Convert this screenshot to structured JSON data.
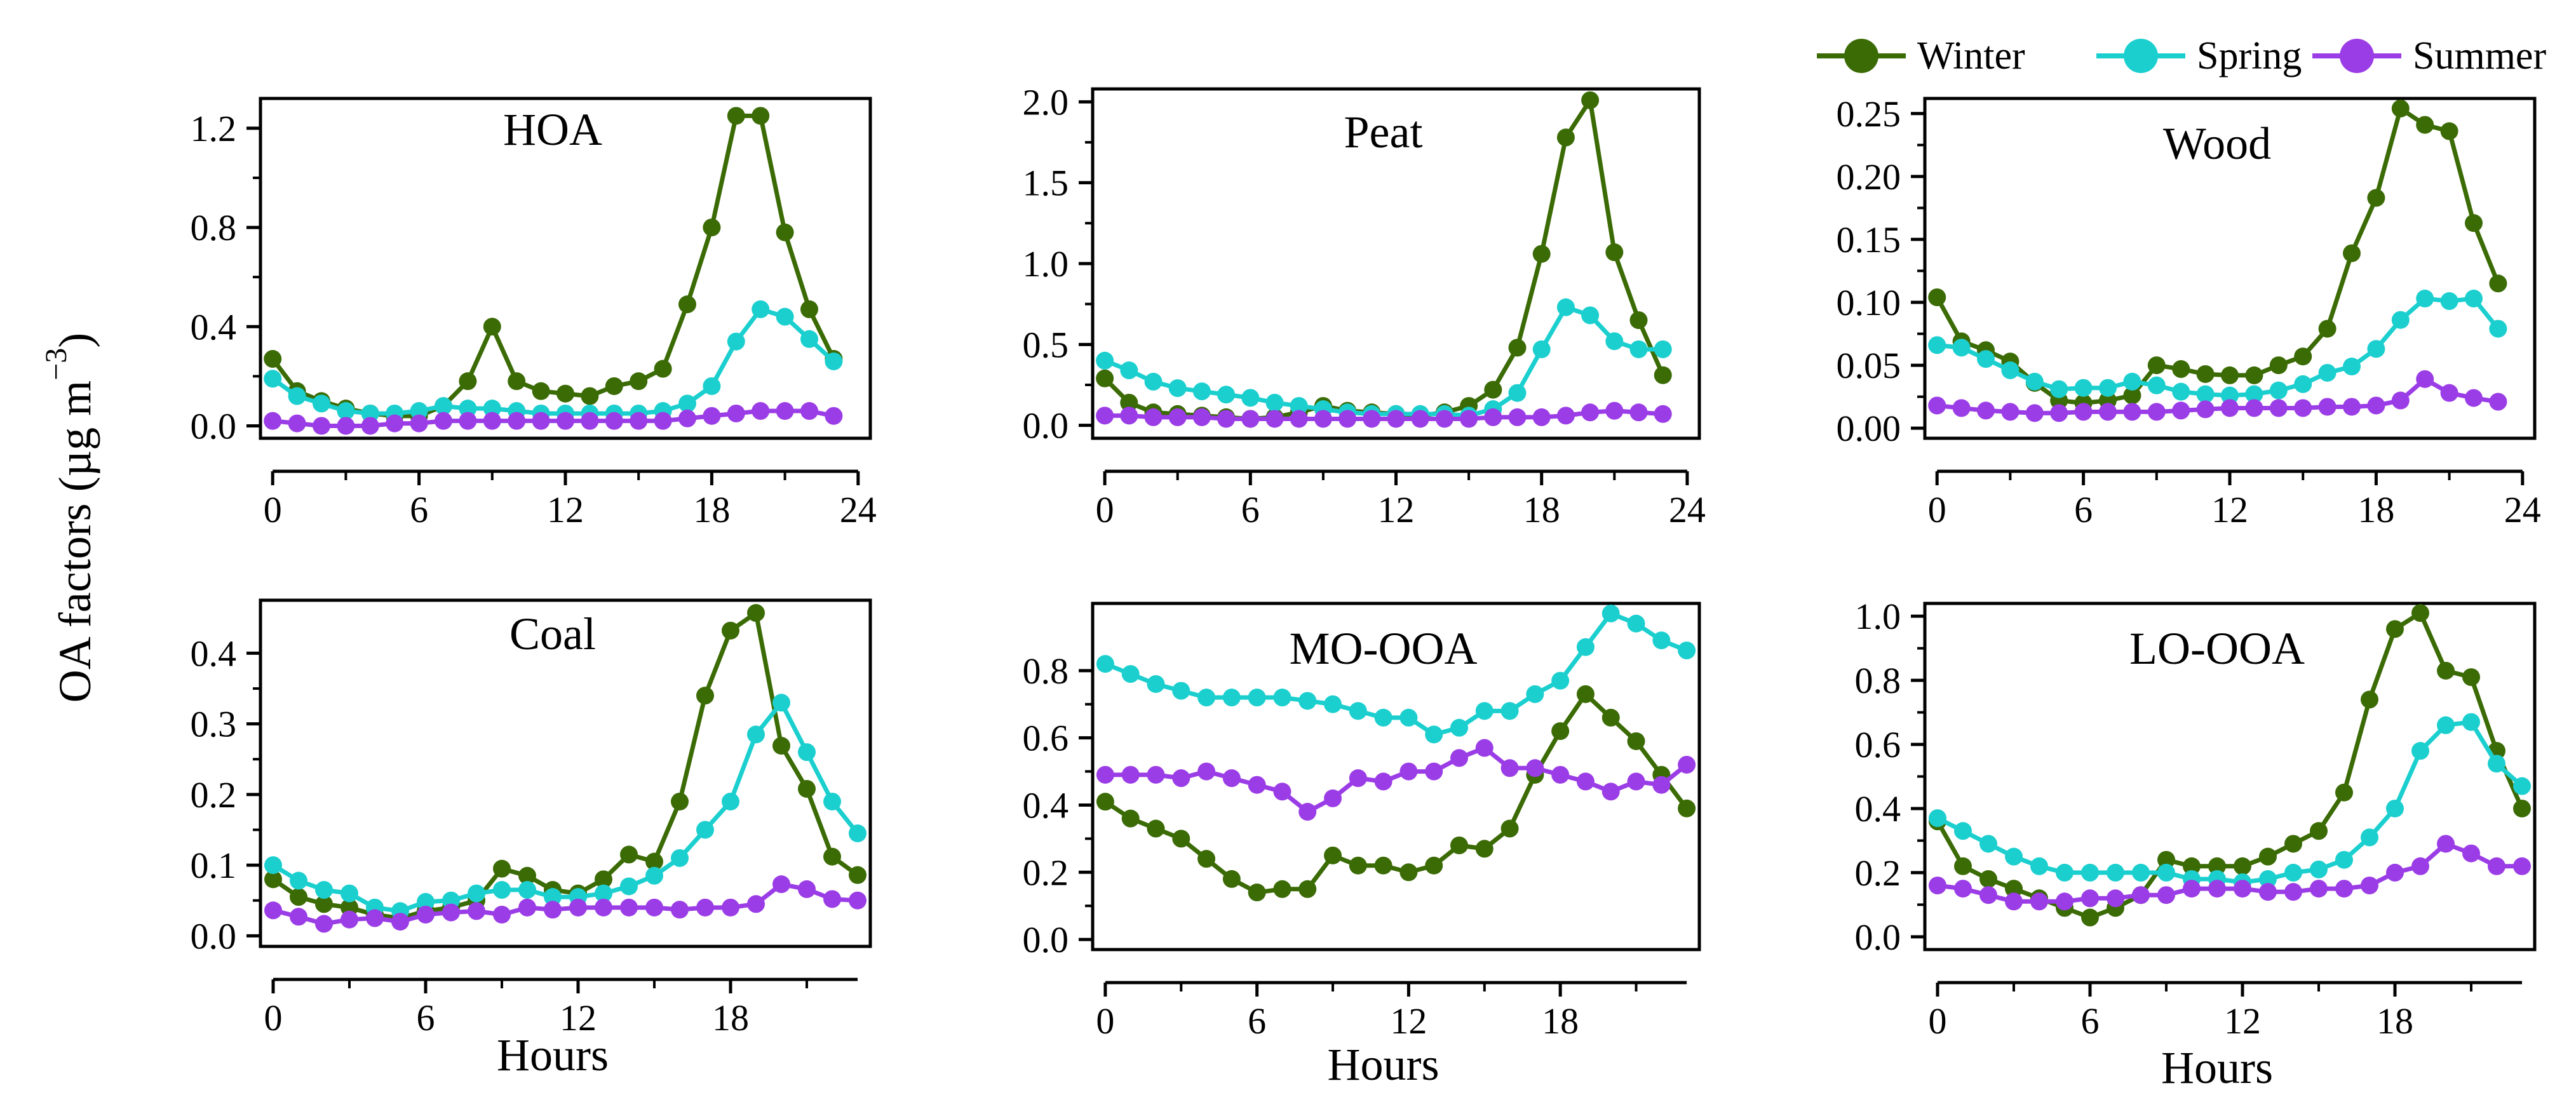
{
  "colors": {
    "Winter": "#3b6b05",
    "Spring": "#1ccfcf",
    "Summer": "#9b3de6"
  },
  "legend": [
    "Winter",
    "Spring",
    "Summer"
  ],
  "ylabel_main": "OA factors (µg m",
  "ylabel_exp": "−3",
  "ylabel_close": ")",
  "chart_data": [
    {
      "type": "line",
      "title": "HOA",
      "xlabel": "",
      "xticks": [
        "0",
        "6",
        "12",
        "18",
        "24"
      ],
      "xlim": [
        -0.5,
        24.5
      ],
      "yticks": [
        "0.0",
        "0.4",
        "0.8",
        "1.2"
      ],
      "ytick_values": [
        0,
        0.4,
        0.8,
        1.2
      ],
      "ylim": [
        -0.05,
        1.32
      ],
      "x": [
        0,
        1,
        2,
        3,
        4,
        5,
        6,
        7,
        8,
        9,
        10,
        11,
        12,
        13,
        14,
        15,
        16,
        17,
        18,
        19,
        20,
        21,
        22,
        23
      ],
      "series": [
        {
          "name": "Winter",
          "values": [
            0.27,
            0.14,
            0.1,
            0.07,
            0.05,
            0.04,
            0.04,
            0.08,
            0.18,
            0.4,
            0.18,
            0.14,
            0.13,
            0.12,
            0.16,
            0.18,
            0.23,
            0.49,
            0.8,
            1.25,
            1.25,
            0.78,
            0.47,
            0.27
          ]
        },
        {
          "name": "Spring",
          "values": [
            0.19,
            0.12,
            0.09,
            0.06,
            0.05,
            0.05,
            0.06,
            0.08,
            0.07,
            0.07,
            0.06,
            0.05,
            0.05,
            0.05,
            0.05,
            0.05,
            0.06,
            0.09,
            0.16,
            0.34,
            0.47,
            0.44,
            0.35,
            0.26
          ]
        },
        {
          "name": "Summer",
          "values": [
            0.02,
            0.01,
            0.0,
            0.0,
            0.0,
            0.01,
            0.01,
            0.02,
            0.02,
            0.02,
            0.02,
            0.02,
            0.02,
            0.02,
            0.02,
            0.02,
            0.02,
            0.03,
            0.04,
            0.05,
            0.06,
            0.06,
            0.06,
            0.04
          ]
        }
      ]
    },
    {
      "type": "line",
      "title": "Peat",
      "xlabel": "",
      "xticks": [
        "0",
        "6",
        "12",
        "18",
        "24"
      ],
      "xlim": [
        -0.5,
        24.5
      ],
      "yticks": [
        "0.0",
        "0.5",
        "1.0",
        "1.5",
        "2.0"
      ],
      "ytick_values": [
        0,
        0.5,
        1.0,
        1.5,
        2.0
      ],
      "ylim": [
        -0.08,
        2.08
      ],
      "x": [
        0,
        1,
        2,
        3,
        4,
        5,
        6,
        7,
        8,
        9,
        10,
        11,
        12,
        13,
        14,
        15,
        16,
        17,
        18,
        19,
        20,
        21,
        22,
        23
      ],
      "series": [
        {
          "name": "Winter",
          "values": [
            0.29,
            0.14,
            0.08,
            0.07,
            0.06,
            0.05,
            0.04,
            0.05,
            0.08,
            0.12,
            0.09,
            0.08,
            0.07,
            0.06,
            0.08,
            0.12,
            0.22,
            0.48,
            1.06,
            1.78,
            2.01,
            1.07,
            0.65,
            0.31
          ]
        },
        {
          "name": "Spring",
          "values": [
            0.4,
            0.34,
            0.27,
            0.23,
            0.21,
            0.19,
            0.17,
            0.14,
            0.12,
            0.1,
            0.08,
            0.07,
            0.07,
            0.07,
            0.07,
            0.06,
            0.1,
            0.2,
            0.47,
            0.73,
            0.68,
            0.52,
            0.47,
            0.47
          ]
        },
        {
          "name": "Summer",
          "values": [
            0.06,
            0.06,
            0.05,
            0.05,
            0.05,
            0.04,
            0.04,
            0.04,
            0.04,
            0.04,
            0.04,
            0.04,
            0.04,
            0.04,
            0.04,
            0.04,
            0.05,
            0.05,
            0.05,
            0.06,
            0.08,
            0.09,
            0.08,
            0.07
          ]
        }
      ]
    },
    {
      "type": "line",
      "title": "Wood",
      "xlabel": "",
      "xticks": [
        "0",
        "6",
        "12",
        "18",
        "24"
      ],
      "xlim": [
        -0.5,
        24.5
      ],
      "yticks": [
        "0.00",
        "0.05",
        "0.10",
        "0.15",
        "0.20",
        "0.25"
      ],
      "ytick_values": [
        0,
        0.05,
        0.1,
        0.15,
        0.2,
        0.25
      ],
      "ylim": [
        -0.008,
        0.262
      ],
      "x": [
        0,
        1,
        2,
        3,
        4,
        5,
        6,
        7,
        8,
        9,
        10,
        11,
        12,
        13,
        14,
        15,
        16,
        17,
        18,
        19,
        20,
        21,
        22,
        23
      ],
      "series": [
        {
          "name": "Winter",
          "values": [
            0.104,
            0.069,
            0.062,
            0.053,
            0.036,
            0.022,
            0.02,
            0.022,
            0.026,
            0.05,
            0.047,
            0.043,
            0.042,
            0.042,
            0.05,
            0.057,
            0.079,
            0.139,
            0.183,
            0.254,
            0.241,
            0.236,
            0.163,
            0.115
          ]
        },
        {
          "name": "Spring",
          "values": [
            0.066,
            0.064,
            0.055,
            0.046,
            0.037,
            0.031,
            0.032,
            0.032,
            0.037,
            0.034,
            0.029,
            0.027,
            0.026,
            0.027,
            0.03,
            0.035,
            0.044,
            0.049,
            0.063,
            0.086,
            0.103,
            0.101,
            0.103,
            0.079
          ]
        },
        {
          "name": "Summer",
          "values": [
            0.018,
            0.016,
            0.014,
            0.013,
            0.012,
            0.012,
            0.013,
            0.013,
            0.013,
            0.013,
            0.014,
            0.015,
            0.016,
            0.016,
            0.016,
            0.016,
            0.017,
            0.017,
            0.018,
            0.022,
            0.039,
            0.028,
            0.024,
            0.021
          ]
        }
      ]
    },
    {
      "type": "line",
      "title": "Coal",
      "xlabel": "Hours",
      "xticks": [
        "0",
        "6",
        "12",
        "18"
      ],
      "xlim": [
        -0.5,
        23.5
      ],
      "yticks": [
        "0.0",
        "0.1",
        "0.2",
        "0.3",
        "0.4"
      ],
      "ytick_values": [
        0,
        0.1,
        0.2,
        0.3,
        0.4
      ],
      "ylim": [
        -0.015,
        0.475
      ],
      "x": [
        0,
        1,
        2,
        3,
        4,
        5,
        6,
        7,
        8,
        9,
        10,
        11,
        12,
        13,
        14,
        15,
        16,
        17,
        18,
        19,
        20,
        21,
        22,
        23
      ],
      "series": [
        {
          "name": "Winter",
          "values": [
            0.08,
            0.055,
            0.045,
            0.04,
            0.03,
            0.025,
            0.035,
            0.04,
            0.05,
            0.095,
            0.085,
            0.065,
            0.06,
            0.08,
            0.115,
            0.105,
            0.19,
            0.34,
            0.432,
            0.457,
            0.269,
            0.208,
            0.112,
            0.086
          ]
        },
        {
          "name": "Spring",
          "values": [
            0.1,
            0.078,
            0.065,
            0.06,
            0.04,
            0.035,
            0.048,
            0.05,
            0.06,
            0.065,
            0.065,
            0.055,
            0.055,
            0.06,
            0.07,
            0.085,
            0.11,
            0.15,
            0.19,
            0.285,
            0.33,
            0.26,
            0.19,
            0.145
          ]
        },
        {
          "name": "Summer",
          "values": [
            0.036,
            0.027,
            0.017,
            0.023,
            0.025,
            0.02,
            0.03,
            0.033,
            0.035,
            0.03,
            0.04,
            0.037,
            0.04,
            0.04,
            0.04,
            0.04,
            0.037,
            0.04,
            0.04,
            0.045,
            0.073,
            0.066,
            0.052,
            0.05
          ]
        }
      ]
    },
    {
      "type": "line",
      "title": "MO-OOA",
      "xlabel": "Hours",
      "xticks": [
        "0",
        "6",
        "12",
        "18"
      ],
      "xlim": [
        -0.5,
        23.5
      ],
      "yticks": [
        "0.0",
        "0.2",
        "0.4",
        "0.6",
        "0.8"
      ],
      "ytick_values": [
        0,
        0.2,
        0.4,
        0.6,
        0.8
      ],
      "ylim": [
        -0.03,
        1.0
      ],
      "x": [
        0,
        1,
        2,
        3,
        4,
        5,
        6,
        7,
        8,
        9,
        10,
        11,
        12,
        13,
        14,
        15,
        16,
        17,
        18,
        19,
        20,
        21,
        22,
        23
      ],
      "series": [
        {
          "name": "Winter",
          "values": [
            0.41,
            0.36,
            0.33,
            0.3,
            0.24,
            0.18,
            0.14,
            0.15,
            0.15,
            0.25,
            0.22,
            0.22,
            0.2,
            0.22,
            0.28,
            0.27,
            0.33,
            0.49,
            0.62,
            0.73,
            0.66,
            0.59,
            0.49,
            0.39
          ]
        },
        {
          "name": "Spring",
          "values": [
            0.82,
            0.79,
            0.76,
            0.74,
            0.72,
            0.72,
            0.72,
            0.72,
            0.71,
            0.7,
            0.68,
            0.66,
            0.66,
            0.61,
            0.63,
            0.68,
            0.68,
            0.73,
            0.77,
            0.87,
            0.97,
            0.94,
            0.89,
            0.86
          ]
        },
        {
          "name": "Summer",
          "values": [
            0.49,
            0.49,
            0.49,
            0.48,
            0.5,
            0.48,
            0.46,
            0.44,
            0.38,
            0.42,
            0.48,
            0.47,
            0.5,
            0.5,
            0.54,
            0.57,
            0.51,
            0.51,
            0.49,
            0.47,
            0.44,
            0.47,
            0.46,
            0.52
          ]
        }
      ]
    },
    {
      "type": "line",
      "title": "LO-OOA",
      "xlabel": "Hours",
      "xticks": [
        "0",
        "6",
        "12",
        "18"
      ],
      "xlim": [
        -0.5,
        23.5
      ],
      "yticks": [
        "0.0",
        "0.2",
        "0.4",
        "0.6",
        "0.8",
        "1.0"
      ],
      "ytick_values": [
        0,
        0.2,
        0.4,
        0.6,
        0.8,
        1.0
      ],
      "ylim": [
        -0.04,
        1.04
      ],
      "x": [
        0,
        1,
        2,
        3,
        4,
        5,
        6,
        7,
        8,
        9,
        10,
        11,
        12,
        13,
        14,
        15,
        16,
        17,
        18,
        19,
        20,
        21,
        22,
        23
      ],
      "series": [
        {
          "name": "Winter",
          "values": [
            0.36,
            0.22,
            0.18,
            0.15,
            0.12,
            0.09,
            0.06,
            0.09,
            0.13,
            0.24,
            0.22,
            0.22,
            0.22,
            0.25,
            0.29,
            0.33,
            0.45,
            0.74,
            0.96,
            1.01,
            0.83,
            0.81,
            0.58,
            0.4
          ]
        },
        {
          "name": "Spring",
          "values": [
            0.37,
            0.33,
            0.29,
            0.25,
            0.22,
            0.2,
            0.2,
            0.2,
            0.2,
            0.2,
            0.18,
            0.18,
            0.17,
            0.18,
            0.2,
            0.21,
            0.24,
            0.31,
            0.4,
            0.58,
            0.66,
            0.67,
            0.54,
            0.47
          ]
        },
        {
          "name": "Summer",
          "values": [
            0.16,
            0.15,
            0.13,
            0.11,
            0.11,
            0.11,
            0.12,
            0.12,
            0.13,
            0.13,
            0.15,
            0.15,
            0.15,
            0.14,
            0.14,
            0.15,
            0.15,
            0.16,
            0.2,
            0.22,
            0.29,
            0.26,
            0.22,
            0.22
          ]
        }
      ]
    }
  ]
}
